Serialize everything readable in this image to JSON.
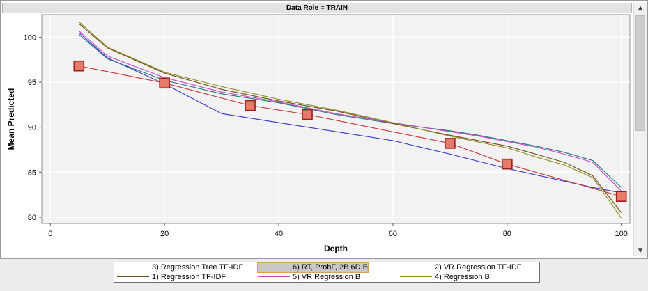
{
  "header": {
    "title": "Data Role = TRAIN"
  },
  "scrollbar": {
    "up_icon": "▲",
    "down_icon": "▼"
  },
  "chart_data": {
    "type": "line",
    "xlabel": "Depth",
    "ylabel": "Mean Predicted",
    "xlim": [
      -1.5,
      101.5
    ],
    "ylim": [
      79.3,
      102.5
    ],
    "xticks": [
      0,
      20,
      40,
      60,
      80,
      100
    ],
    "yticks": [
      80,
      85,
      90,
      95,
      100
    ],
    "grid": true,
    "legend_position": "bottom",
    "series": [
      {
        "name": "3) Regression Tree TF-IDF",
        "color": "#3434c8",
        "marker": false,
        "x": [
          5,
          10,
          20,
          30,
          40,
          50,
          60,
          70,
          80,
          90,
          95,
          100
        ],
        "y": [
          100.5,
          97.7,
          94.8,
          91.5,
          90.5,
          89.5,
          88.5,
          87.0,
          85.4,
          84.0,
          83.3,
          82.7
        ]
      },
      {
        "name": "6) RT, ProbF, 2B 6D B",
        "color": "#c83232",
        "marker": true,
        "marker_color": "#e87a6a",
        "x": [
          5,
          20,
          35,
          45,
          70,
          80,
          100
        ],
        "y": [
          96.8,
          94.9,
          92.4,
          91.4,
          88.2,
          85.9,
          82.3
        ]
      },
      {
        "name": "2) VR Regression TF-IDF",
        "color": "#1e7878",
        "marker": false,
        "x": [
          5,
          10,
          20,
          30,
          40,
          50,
          60,
          70,
          75,
          80,
          85,
          90,
          95,
          100
        ],
        "y": [
          100.3,
          97.6,
          95.2,
          93.7,
          92.7,
          91.4,
          90.4,
          89.6,
          89.1,
          88.5,
          87.9,
          87.2,
          86.3,
          83.3
        ]
      },
      {
        "name": "1) Regression TF-IDF",
        "color": "#6e4a14",
        "marker": false,
        "x": [
          5,
          10,
          20,
          30,
          40,
          50,
          60,
          70,
          80,
          85,
          90,
          95,
          100
        ],
        "y": [
          101.5,
          98.8,
          96.0,
          94.2,
          92.9,
          91.8,
          90.4,
          89.1,
          87.9,
          87.0,
          86.1,
          84.6,
          80.5
        ]
      },
      {
        "name": "5) VR Regression B",
        "color": "#c846c8",
        "marker": false,
        "x": [
          5,
          10,
          20,
          30,
          40,
          50,
          60,
          70,
          75,
          80,
          85,
          90,
          95,
          100
        ],
        "y": [
          100.7,
          97.9,
          95.5,
          93.9,
          92.8,
          91.5,
          90.5,
          89.5,
          89.0,
          88.4,
          87.8,
          87.0,
          86.1,
          82.9
        ]
      },
      {
        "name": "4) Regression B",
        "color": "#8c8c1e",
        "marker": false,
        "x": [
          5,
          10,
          20,
          30,
          40,
          50,
          60,
          70,
          80,
          85,
          90,
          95,
          100
        ],
        "y": [
          101.7,
          98.9,
          96.1,
          94.5,
          93.1,
          91.9,
          90.5,
          89.0,
          87.7,
          86.7,
          85.8,
          84.4,
          79.9
        ]
      }
    ]
  }
}
